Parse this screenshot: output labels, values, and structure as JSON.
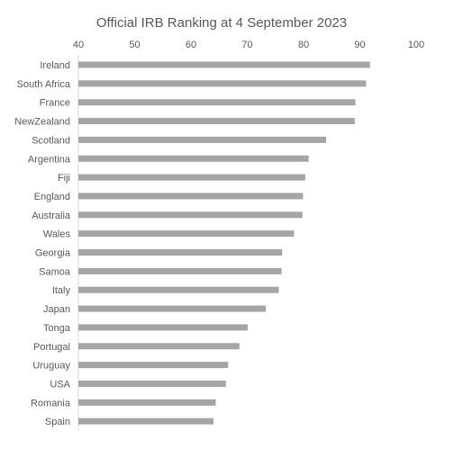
{
  "chart_data": {
    "type": "bar",
    "orientation": "horizontal",
    "title": "Official IRB Ranking at 4 September 2023",
    "xlabel": "",
    "ylabel": "",
    "xlim": [
      40,
      100
    ],
    "x_ticks": [
      "40",
      "50",
      "60",
      "70",
      "80",
      "90",
      "100"
    ],
    "x_axis_position": "top",
    "grid": false,
    "bar_color": "#a5a5a5",
    "categories": [
      "Ireland",
      "South Africa",
      "France",
      "NewZealand",
      "Scotland",
      "Argentina",
      "Fiji",
      "England",
      "Australia",
      "Wales",
      "Georgia",
      "Samoa",
      "Italy",
      "Japan",
      "Tonga",
      "Portugal",
      "Uruguay",
      "USA",
      "Romania",
      "Spain"
    ],
    "values": [
      91.8,
      91.1,
      89.2,
      89.1,
      84.0,
      80.9,
      80.3,
      79.9,
      79.8,
      78.3,
      76.2,
      76.1,
      75.6,
      73.3,
      70.1,
      68.6,
      66.6,
      66.2,
      64.4,
      64.0
    ]
  }
}
